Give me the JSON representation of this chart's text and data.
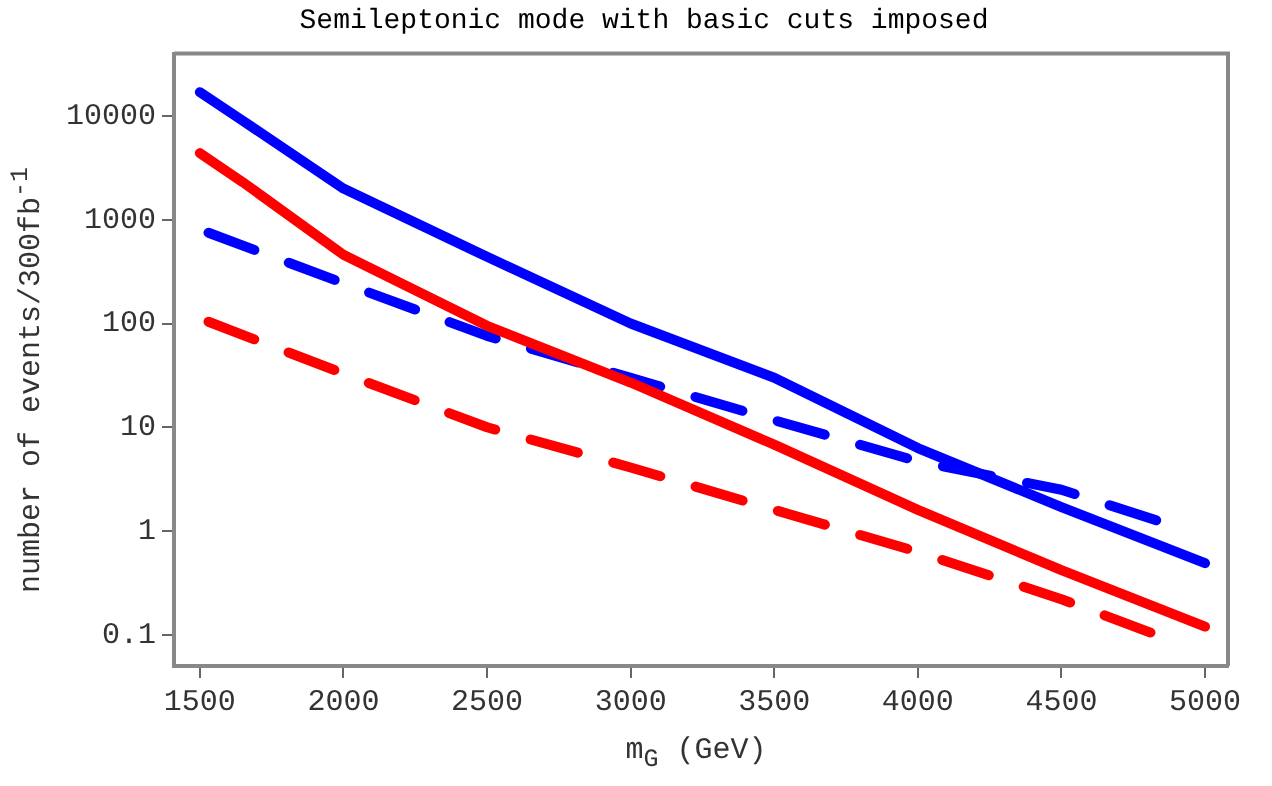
{
  "chart_data": {
    "type": "line",
    "title": "Semileptonic mode with basic cuts imposed",
    "xlabel": "m$_{G}$ (GeV)",
    "ylabel": "number of events/300fb$^{-1}$",
    "log": "y",
    "grid": false,
    "legend": false,
    "marker": "none",
    "xlim": [
      1410,
      5080
    ],
    "xticks": [
      1500,
      2000,
      2500,
      3000,
      3500,
      4000,
      4500,
      5000
    ],
    "ylim": [
      0.05,
      40000
    ],
    "yticks": [
      0.1,
      1,
      10,
      100,
      1000,
      10000
    ],
    "series": [
      {
        "color": "#0000ff",
        "line_style": "solid",
        "x": [
          1500,
          1650,
          2000,
          2500,
          3000,
          3500,
          4000,
          4500,
          5000
        ],
        "values": [
          17000,
          9000,
          2000,
          440,
          100,
          30,
          6.3,
          1.7,
          0.49
        ]
      },
      {
        "color": "#ff0000",
        "line_style": "solid",
        "x": [
          1500,
          1650,
          2000,
          2500,
          3000,
          3500,
          4000,
          4500,
          5000
        ],
        "values": [
          4400,
          2300,
          460,
          95,
          27,
          6.8,
          1.6,
          0.42,
          0.12
        ]
      },
      {
        "color": "#0000ff",
        "line_style": "dashed",
        "x": [
          1530,
          2000,
          2500,
          3000,
          3500,
          4000,
          4500,
          4830
        ],
        "values": [
          750,
          245,
          76,
          30,
          11.7,
          4.7,
          2.5,
          1.27
        ]
      },
      {
        "color": "#ff0000",
        "line_style": "dashed",
        "x": [
          1530,
          2000,
          2500,
          3000,
          3500,
          4000,
          4500,
          4810
        ],
        "values": [
          104,
          33,
          10,
          4.1,
          1.6,
          0.63,
          0.22,
          0.105
        ]
      }
    ]
  }
}
